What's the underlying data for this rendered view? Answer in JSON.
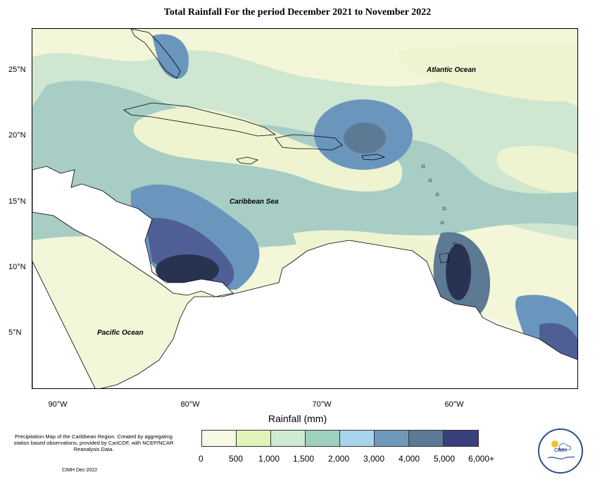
{
  "title": "Total Rainfall For the period December 2021 to November 2022",
  "map": {
    "latitude_labels": [
      "25°N",
      "20°N",
      "15°N",
      "10°N",
      "5°N"
    ],
    "longitude_labels": [
      "90°W",
      "80°W",
      "70°W",
      "60°W"
    ],
    "ocean_labels": [
      "Atlantic Ocean",
      "Caribbean Sea",
      "Pacific Ocean"
    ]
  },
  "legend": {
    "title": "Rainfall (mm)",
    "labels": [
      "0",
      "500",
      "1,000",
      "1,500",
      "2,000",
      "3,000",
      "4,000",
      "5,000",
      "6,000+"
    ],
    "colors": [
      "#f7f8e6",
      "#dff5b8",
      "#cfead0",
      "#9fcfbd",
      "#a9d4ee",
      "#6f98bd",
      "#5d7a94",
      "#3a3f7d"
    ]
  },
  "footnote": "Precipitation Map of the Caribbean Region. Created by aggregating station based observations, provided by CariCOF, with NCEP/NCAR Reanalysis Data.",
  "credit": "CIMH Dec-2022",
  "logo_text": "CIMH",
  "colors": {
    "land": "#ffffff",
    "boundary": "#000000",
    "low_rain": "#f3f6d8",
    "mid_rain": "#a7cdc4",
    "high_rain": "#6a96bd",
    "very_high_rain": "#3c3f80",
    "extreme_rain": "#283352"
  }
}
